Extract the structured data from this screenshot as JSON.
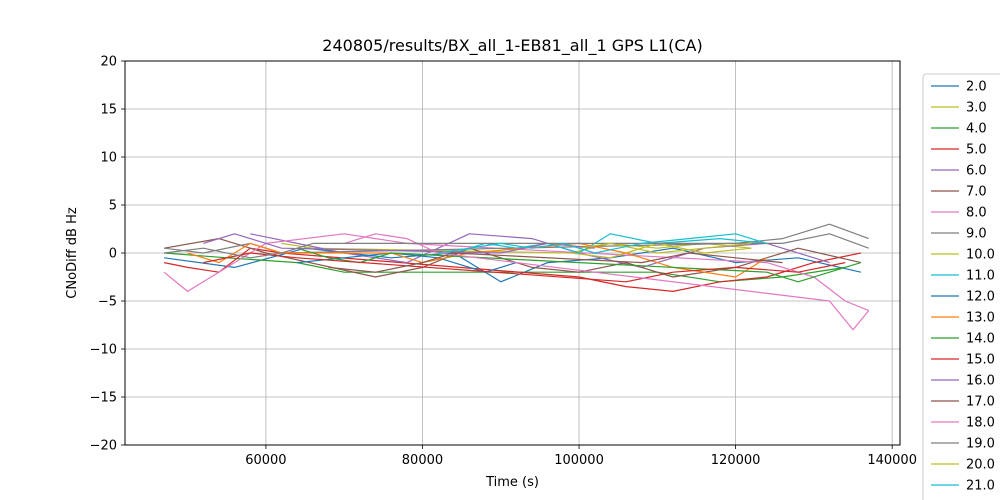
{
  "chart_data": {
    "type": "line",
    "title": "240805/results/BX_all_1-EB81_all_1 GPS L1(CA)",
    "xlabel": "Time (s)",
    "ylabel": "CNoDiff dB Hz",
    "xlim": [
      42000,
      141000
    ],
    "ylim": [
      -20,
      20
    ],
    "xticks": [
      60000,
      80000,
      100000,
      120000,
      140000
    ],
    "xtick_labels": [
      "60000",
      "80000",
      "100000",
      "120000",
      "140000"
    ],
    "yticks": [
      -20,
      -15,
      -10,
      -5,
      0,
      5,
      10,
      15,
      20
    ],
    "ytick_labels": [
      "−20",
      "−15",
      "−10",
      "−5",
      "0",
      "5",
      "10",
      "15",
      "20"
    ],
    "grid": true,
    "legend_position": "right, outside plot (clipped at bottom)",
    "series": [
      {
        "name": "2.0",
        "color": "#1f77b4",
        "x": [
          47000,
          56000,
          65000,
          76000,
          84000,
          90000,
          96000,
          104000,
          112000,
          120000,
          128000,
          136000
        ],
        "y": [
          -0.5,
          -1.5,
          0.5,
          -0.5,
          0.0,
          -3.0,
          -1.0,
          -0.5,
          0.5,
          -1.0,
          -0.5,
          -2.0
        ]
      },
      {
        "name": "3.0",
        "color": "#bcbd22",
        "x": [
          62000,
          66000,
          99000,
          104000,
          110000,
          116000,
          122000
        ],
        "y": [
          1.0,
          0.5,
          0.0,
          1.0,
          0.5,
          1.0,
          0.5
        ]
      },
      {
        "name": "4.0",
        "color": "#2ca02c",
        "x": [
          47000,
          55000,
          64000,
          70000,
          110000,
          118000,
          126000,
          134000
        ],
        "y": [
          0.0,
          -0.5,
          -1.0,
          -2.0,
          -2.0,
          -3.0,
          -2.5,
          -1.5
        ]
      },
      {
        "name": "5.0",
        "color": "#d62728",
        "x": [
          47000,
          50000,
          54000,
          58000,
          62000,
          100000,
          106000,
          112000,
          118000,
          124000,
          130000,
          136000
        ],
        "y": [
          -1.0,
          -1.5,
          -2.0,
          0.5,
          0.0,
          -2.5,
          -3.5,
          -4.0,
          -3.0,
          -2.5,
          -1.0,
          0.0
        ]
      },
      {
        "name": "6.0",
        "color": "#9467bd",
        "x": [
          58000,
          64000,
          70000,
          78000,
          86000,
          94000,
          100000,
          108000,
          116000,
          124000,
          132000
        ],
        "y": [
          2.0,
          1.0,
          0.0,
          -1.0,
          2.0,
          1.5,
          0.0,
          -1.5,
          0.5,
          1.0,
          -1.0
        ]
      },
      {
        "name": "7.0",
        "color": "#8c564b",
        "x": [
          47000,
          54000,
          60000,
          74000,
          80000,
          86000,
          94000,
          100000,
          106000,
          112000,
          120000,
          128000,
          136000
        ],
        "y": [
          0.5,
          1.5,
          0.0,
          -2.5,
          -1.5,
          0.5,
          -1.5,
          -2.0,
          -1.0,
          -2.5,
          -1.5,
          0.5,
          -1.0
        ]
      },
      {
        "name": "8.0",
        "color": "#e377c2",
        "x": [
          47000,
          50000,
          52000,
          60000,
          70000,
          74000,
          78000,
          124000,
          130000,
          134000,
          137000
        ],
        "y": [
          -2.0,
          -4.0,
          -3.0,
          1.0,
          2.0,
          1.5,
          1.0,
          -1.0,
          -2.5,
          -5.0,
          -6.0
        ]
      },
      {
        "name": "9.0",
        "color": "#7f7f7f",
        "x": [
          47000,
          52000,
          58000,
          62000,
          120000,
          126000,
          132000,
          137000
        ],
        "y": [
          0.5,
          0.0,
          1.0,
          0.0,
          1.0,
          1.5,
          3.0,
          1.5
        ]
      },
      {
        "name": "10.0",
        "color": "#bcbd22",
        "x": [
          99000,
          104000,
          110000,
          116000,
          122000
        ],
        "y": [
          0.0,
          -0.5,
          1.0,
          0.0,
          0.5
        ]
      },
      {
        "name": "11.0",
        "color": "#17becf",
        "x": [
          84000,
          88000,
          92000,
          96000,
          100000,
          104000,
          110000,
          118000,
          124000
        ],
        "y": [
          0.0,
          1.0,
          0.5,
          1.0,
          0.0,
          2.0,
          1.0,
          1.5,
          1.0
        ]
      },
      {
        "name": "12.0",
        "color": "#1f77b4",
        "x": [
          64000,
          70000,
          76000,
          82000,
          88000,
          92000
        ],
        "y": [
          -1.0,
          -0.5,
          0.0,
          -0.5,
          -2.0,
          -1.0
        ]
      },
      {
        "name": "13.0",
        "color": "#ff7f0e",
        "x": [
          50000,
          54000,
          58000,
          62000,
          76000,
          80000,
          86000,
          100000,
          106000,
          112000,
          120000,
          124000
        ],
        "y": [
          0.0,
          -1.0,
          1.0,
          0.0,
          0.0,
          -1.0,
          0.0,
          1.0,
          0.0,
          -1.5,
          -2.5,
          -0.5
        ]
      },
      {
        "name": "14.0",
        "color": "#2ca02c",
        "x": [
          64000,
          68000,
          72000,
          76000,
          124000,
          128000,
          132000,
          136000
        ],
        "y": [
          0.5,
          -0.5,
          -1.0,
          0.0,
          -2.0,
          -3.0,
          -2.0,
          -1.0
        ]
      },
      {
        "name": "15.0",
        "color": "#d62728",
        "x": [
          52000,
          58000,
          64000,
          106000,
          112000,
          120000,
          128000,
          134000
        ],
        "y": [
          -1.0,
          0.0,
          -0.5,
          -3.0,
          -2.0,
          -1.5,
          -2.0,
          -1.0
        ]
      },
      {
        "name": "16.0",
        "color": "#9467bd",
        "x": [
          52000,
          56000,
          62000,
          90000,
          96000,
          102000
        ],
        "y": [
          1.0,
          2.0,
          0.5,
          0.0,
          1.0,
          0.5
        ]
      },
      {
        "name": "17.0",
        "color": "#8c564b",
        "x": [
          68000,
          74000,
          80000,
          84000,
          108000,
          114000,
          120000,
          126000
        ],
        "y": [
          -1.5,
          -2.0,
          -1.0,
          0.0,
          -1.0,
          0.0,
          -0.5,
          -1.0
        ]
      },
      {
        "name": "18.0",
        "color": "#e377c2",
        "x": [
          70000,
          74000,
          78000,
          82000,
          132000,
          135000,
          137000
        ],
        "y": [
          1.0,
          2.0,
          1.5,
          0.0,
          -5.0,
          -8.0,
          -6.0
        ]
      },
      {
        "name": "19.0",
        "color": "#7f7f7f",
        "x": [
          47000,
          52000,
          58000,
          62000,
          66000,
          126000,
          132000,
          137000
        ],
        "y": [
          0.0,
          0.5,
          -0.5,
          0.0,
          1.0,
          1.0,
          2.0,
          0.5
        ]
      },
      {
        "name": "20.0",
        "color": "#bcbd22",
        "x": [
          100000,
          104000,
          110000,
          116000,
          122000
        ],
        "y": [
          0.5,
          1.0,
          0.0,
          0.5,
          1.0
        ]
      },
      {
        "name": "21.0",
        "color": "#17becf",
        "x": [
          82000,
          86000,
          90000,
          94000,
          98000,
          102000,
          108000,
          114000,
          120000,
          124000
        ],
        "y": [
          0.0,
          0.5,
          1.0,
          0.5,
          1.0,
          0.0,
          1.0,
          1.5,
          2.0,
          1.0
        ]
      }
    ]
  }
}
